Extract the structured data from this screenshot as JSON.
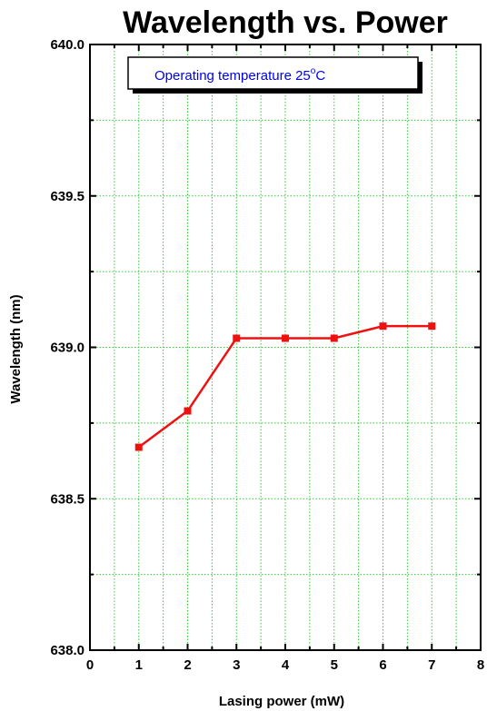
{
  "chart_data": {
    "type": "line",
    "title": "Wavelength vs. Power",
    "xlabel": "Lasing power (mW)",
    "ylabel": "Wavelength (nm)",
    "xlim": [
      0,
      8
    ],
    "ylim": [
      638.0,
      640.0
    ],
    "x_ticks": [
      "0",
      "1",
      "2",
      "3",
      "4",
      "5",
      "6",
      "7",
      "8"
    ],
    "y_ticks": [
      "638.0",
      "638.5",
      "639.0",
      "639.5",
      "640.0"
    ],
    "grid": true,
    "series": [
      {
        "x": [
          1,
          2,
          3,
          4,
          5,
          6,
          7
        ],
        "values": [
          638.67,
          638.79,
          639.03,
          639.03,
          639.03,
          639.07,
          639.07
        ]
      }
    ],
    "annotation": {
      "text": "Operating temperature 25",
      "sup": "o",
      "unit": "C"
    },
    "colors": {
      "series": "#ee1111",
      "grid": "#33cc33",
      "annotation_text": "#0000ee"
    }
  }
}
